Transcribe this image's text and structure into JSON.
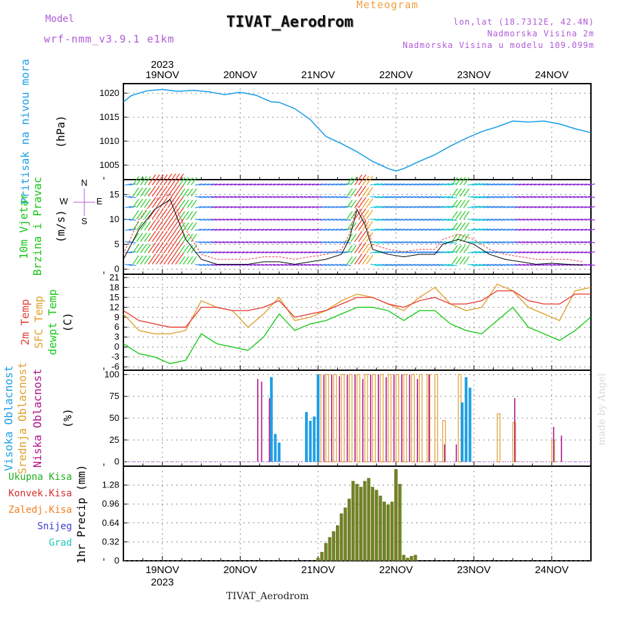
{
  "header": {
    "model_label": "Model",
    "model_name": "wrf-nmm_v3.9.1 e1km",
    "product": "Meteogram",
    "station": "TIVAT_Aerodrom",
    "lonlat": "lon,lat (18.7312E, 42.4N)",
    "altitude": "Nadmorska Visina 2m",
    "altitude_model": "Nadmorska Visina u modelu 109.099m"
  },
  "footer": {
    "station": "TIVAT_Aerodrom",
    "signature": "made by Angel"
  },
  "colors": {
    "pressure": "#1ea0e6",
    "temp2m": "#e8403a",
    "sfc_temp": "#e0a030",
    "dewpoint": "#18c818",
    "high_cloud": "#1ea0e6",
    "mid_cloud": "#e0a030",
    "low_cloud": "#b0128a",
    "precip_total": "#20b020",
    "precip_conv": "#d83030",
    "precip_frozen": "#f08020",
    "snow": "#3c3cd0",
    "graupel": "#20c8b8",
    "wind_compass": "#b05ad8"
  },
  "chart_data": [
    {
      "type": "line",
      "id": "pressure",
      "ylabel": "Pritisak na nivou mora",
      "unit": "(hPa)",
      "ylim": [
        1002,
        1022
      ],
      "yticks": [
        "1005",
        "1010",
        "1015",
        "1020"
      ],
      "x_dates": [
        "19NOV",
        "20NOV",
        "21NOV",
        "22NOV",
        "23NOV",
        "24NOV"
      ],
      "x_year": "2023",
      "grid": true,
      "series": [
        {
          "x": [
            18.5,
            18.6,
            18.8,
            19.0,
            19.2,
            19.4,
            19.6,
            19.8,
            20.0,
            20.2,
            20.4,
            20.5,
            20.7,
            20.9,
            21.1,
            21.3,
            21.5,
            21.7,
            21.9,
            22.0,
            22.1,
            22.3,
            22.5,
            22.7,
            22.9,
            23.1,
            23.3,
            23.5,
            23.7,
            23.9,
            24.1,
            24.3,
            24.5
          ],
          "y": [
            1018.2,
            1019.5,
            1020.5,
            1020.8,
            1020.4,
            1020.6,
            1020.3,
            1019.7,
            1020.2,
            1019.6,
            1018.2,
            1018.1,
            1016.8,
            1014.5,
            1011.0,
            1009.5,
            1007.8,
            1005.8,
            1004.3,
            1003.8,
            1004.3,
            1005.8,
            1007.2,
            1009.0,
            1010.6,
            1012.0,
            1013.0,
            1014.2,
            1014.0,
            1014.2,
            1013.6,
            1012.6,
            1011.8
          ]
        }
      ]
    },
    {
      "type": "scatter",
      "id": "wind",
      "ylabel": "10m Vjetar Brzina i Pravac",
      "unit": "(m/s)",
      "compass": [
        "N",
        "E",
        "S",
        "W"
      ],
      "ylim": [
        -1,
        18
      ],
      "yticks": [
        "0",
        "5",
        "10",
        "15"
      ],
      "grid": true,
      "series": [
        {
          "name": "speed",
          "x": [
            18.5,
            18.7,
            18.9,
            19.1,
            19.3,
            19.5,
            19.7,
            19.9,
            20.1,
            20.3,
            20.5,
            20.7,
            20.9,
            21.1,
            21.3,
            21.4,
            21.5,
            21.6,
            21.7,
            21.9,
            22.1,
            22.3,
            22.5,
            22.6,
            22.8,
            23.0,
            23.2,
            23.4,
            23.6,
            23.8,
            24.0,
            24.2,
            24.4
          ],
          "y": [
            2,
            8,
            12,
            14,
            6,
            2,
            1,
            1,
            1,
            1.5,
            1.5,
            1,
            1.5,
            2,
            3,
            6,
            12,
            9,
            4,
            3,
            2.5,
            3,
            3,
            5,
            6,
            5,
            3,
            2,
            1.5,
            1,
            1.2,
            1,
            0.8
          ]
        },
        {
          "name": "gust",
          "x": [
            18.5,
            18.7,
            18.9,
            19.1,
            19.3,
            19.5,
            19.7,
            19.9,
            20.1,
            20.3,
            20.5,
            20.7,
            20.9,
            21.1,
            21.3,
            21.4,
            21.5,
            21.6,
            21.7,
            21.9,
            22.1,
            22.3,
            22.5,
            22.6,
            22.8,
            23.0,
            23.2,
            23.4,
            23.6,
            23.8,
            24.0,
            24.2,
            24.4
          ],
          "y": [
            3,
            10,
            14,
            15,
            8,
            3,
            2,
            2,
            2,
            2.5,
            2.5,
            2,
            2.5,
            3,
            4,
            7,
            13,
            10,
            5,
            4,
            3.5,
            4,
            4,
            6,
            7,
            6,
            4,
            3,
            2.5,
            2,
            2,
            2,
            1.5
          ]
        }
      ]
    },
    {
      "type": "line",
      "id": "temperature",
      "ylabel": [
        "2m Temp",
        "SFC Temp",
        "dewpt Temp"
      ],
      "unit": "(C)",
      "ylim": [
        -7,
        22
      ],
      "yticks": [
        "-6",
        "-3",
        "0",
        "3",
        "6",
        "9",
        "12",
        "15",
        "18",
        "21"
      ],
      "grid": true,
      "x": [
        18.5,
        18.7,
        18.9,
        19.1,
        19.3,
        19.5,
        19.7,
        19.9,
        20.1,
        20.3,
        20.5,
        20.7,
        20.9,
        21.1,
        21.3,
        21.5,
        21.7,
        21.9,
        22.1,
        22.3,
        22.5,
        22.7,
        22.9,
        23.1,
        23.3,
        23.5,
        23.7,
        23.9,
        24.1,
        24.3,
        24.5
      ],
      "series": [
        {
          "name": "2m Temp",
          "values": [
            11,
            8,
            7,
            6,
            6,
            12,
            12,
            11,
            11,
            12,
            14,
            9,
            10,
            11,
            13,
            15,
            15,
            13,
            12,
            14,
            15,
            13,
            13,
            14,
            17,
            17,
            14,
            13,
            13,
            16,
            16
          ]
        },
        {
          "name": "SFC Temp",
          "values": [
            10,
            5,
            4,
            4,
            5,
            14,
            12,
            11,
            6,
            10,
            15,
            8,
            9,
            11,
            14,
            16,
            15,
            13,
            11,
            15,
            18,
            13,
            11,
            12,
            19,
            17,
            12,
            10,
            8,
            17,
            18
          ]
        },
        {
          "name": "dewpt Temp",
          "values": [
            1,
            -2,
            -3,
            -5,
            -4,
            4,
            1,
            0,
            -1,
            3,
            10,
            5,
            7,
            8,
            10,
            12,
            12,
            11,
            8,
            11,
            11,
            7,
            5,
            4,
            8,
            12,
            6,
            4,
            2,
            5,
            9
          ]
        }
      ]
    },
    {
      "type": "bar",
      "id": "cloud",
      "ylabel": [
        "Visoka Oblacnost",
        "Srednja Oblacnost",
        "Niska Oblacnost"
      ],
      "unit": "(%)",
      "ylim": [
        -5,
        105
      ],
      "yticks": [
        "0",
        "25",
        "50",
        "75",
        "100"
      ],
      "grid": true,
      "series": [
        {
          "name": "Visoka Oblacnost",
          "x": [
            20.4,
            20.45,
            20.5,
            20.85,
            20.9,
            20.95,
            21.0,
            22.85,
            22.9,
            22.95
          ],
          "values": [
            97,
            32,
            22,
            57,
            47,
            52,
            100,
            68,
            97,
            85
          ]
        },
        {
          "name": "Srednja Oblacnost",
          "x": [
            21.0,
            21.1,
            21.2,
            21.3,
            21.4,
            21.5,
            21.6,
            21.7,
            21.8,
            21.9,
            22.0,
            22.1,
            22.2,
            22.3,
            22.4,
            22.5,
            22.6,
            22.8,
            23.3,
            23.5,
            24.0
          ],
          "values": [
            100,
            100,
            100,
            100,
            100,
            100,
            100,
            100,
            100,
            100,
            100,
            100,
            100,
            100,
            100,
            100,
            47,
            100,
            55,
            45,
            25
          ]
        },
        {
          "name": "Niska Oblacnost",
          "x": [
            20.2,
            20.25,
            20.35,
            21.05,
            21.15,
            21.25,
            21.35,
            21.45,
            21.55,
            21.65,
            21.75,
            21.85,
            21.95,
            22.05,
            22.15,
            22.25,
            22.4,
            22.6,
            22.75,
            23.5,
            24.0,
            24.1
          ],
          "values": [
            95,
            92,
            73,
            100,
            100,
            98,
            100,
            100,
            95,
            100,
            100,
            97,
            100,
            100,
            100,
            95,
            100,
            20,
            20,
            73,
            40,
            30
          ]
        }
      ]
    },
    {
      "type": "bar",
      "id": "precip",
      "ylabel": "1hr Precip",
      "unit": "(mm)",
      "legend": [
        "Ukupna Kisa",
        "Konvek.Kisa",
        "Zaledj.Kisa",
        "Snijeg",
        "Grad"
      ],
      "ylim": [
        0,
        1.6
      ],
      "yticks": [
        "0",
        "0.32",
        "0.64",
        "0.96",
        "1.28"
      ],
      "grid": true,
      "series": [
        {
          "name": "Ukupna Kisa",
          "x": [
            21.0,
            21.05,
            21.1,
            21.15,
            21.2,
            21.25,
            21.3,
            21.35,
            21.4,
            21.45,
            21.5,
            21.55,
            21.6,
            21.65,
            21.7,
            21.75,
            21.8,
            21.85,
            21.9,
            21.95,
            22.0,
            22.05,
            22.1,
            22.15,
            22.2,
            22.25
          ],
          "values": [
            0.05,
            0.15,
            0.3,
            0.4,
            0.5,
            0.6,
            0.8,
            0.9,
            1.05,
            1.35,
            1.3,
            1.25,
            1.35,
            1.4,
            1.25,
            1.2,
            1.1,
            1.0,
            0.95,
            1.0,
            1.55,
            1.3,
            0.1,
            0.05,
            0.08,
            0.1
          ]
        }
      ]
    }
  ]
}
